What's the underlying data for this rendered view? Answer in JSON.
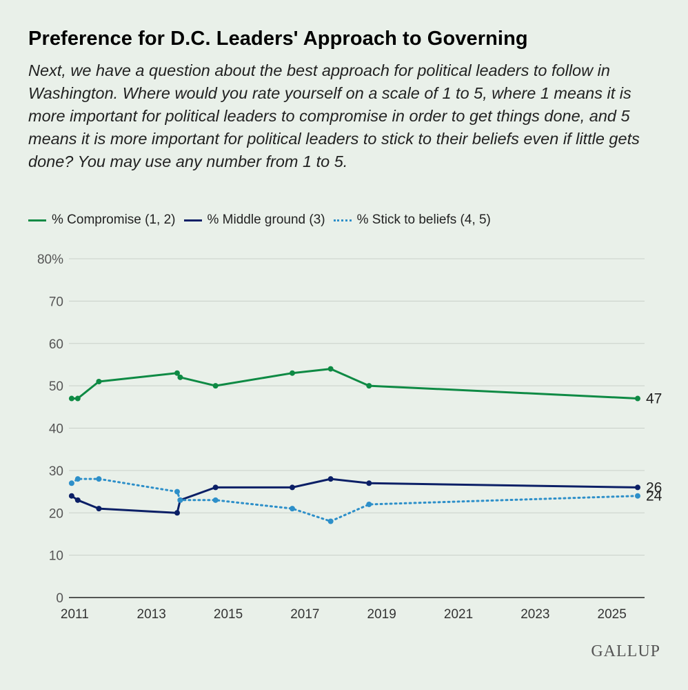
{
  "title": "Preference for D.C. Leaders' Approach to Governing",
  "subtitle": "Next, we have a question about the best approach for political leaders to follow in Washington. Where would you rate yourself on a scale of 1 to 5, where 1 means it is more important for political leaders to compromise in order to get things done, and 5 means it is more important for political leaders to stick to their beliefs even if little gets done? You may use any number from 1 to 5.",
  "brand": "GALLUP",
  "chart_data": {
    "type": "line",
    "xlim": [
      2010.85,
      2025.85
    ],
    "ylim": [
      0,
      80
    ],
    "x_ticks": [
      2011,
      2013,
      2015,
      2017,
      2019,
      2021,
      2023,
      2025
    ],
    "y_ticks": [
      0,
      10,
      20,
      30,
      40,
      50,
      60,
      70,
      80
    ],
    "y_tick_labels": [
      "0",
      "10",
      "20",
      "30",
      "40",
      "50",
      "60",
      "70",
      "80%"
    ],
    "grid": true,
    "legend": "top-left",
    "series": [
      {
        "name": "% Compromise (1, 2)",
        "color": "#0e8a44",
        "style": "solid",
        "end_label": "47",
        "x": [
          2010.92,
          2011.08,
          2011.63,
          2013.67,
          2013.75,
          2014.67,
          2016.67,
          2017.67,
          2018.67,
          2025.67
        ],
        "y": [
          47,
          47,
          51,
          53,
          52,
          50,
          53,
          54,
          50,
          47
        ]
      },
      {
        "name": "% Middle ground (3)",
        "color": "#0b1f66",
        "style": "solid",
        "end_label": "26",
        "x": [
          2010.92,
          2011.08,
          2011.63,
          2013.67,
          2013.75,
          2014.67,
          2016.67,
          2017.67,
          2018.67,
          2025.67
        ],
        "y": [
          24,
          23,
          21,
          20,
          23,
          26,
          26,
          28,
          27,
          26
        ]
      },
      {
        "name": "% Stick to beliefs (4, 5)",
        "color": "#2d8fc9",
        "style": "dotted",
        "end_label": "24",
        "x": [
          2010.92,
          2011.08,
          2011.63,
          2013.67,
          2013.75,
          2014.67,
          2016.67,
          2017.67,
          2018.67,
          2025.67
        ],
        "y": [
          27,
          28,
          28,
          25,
          23,
          23,
          21,
          18,
          22,
          24
        ]
      }
    ]
  }
}
